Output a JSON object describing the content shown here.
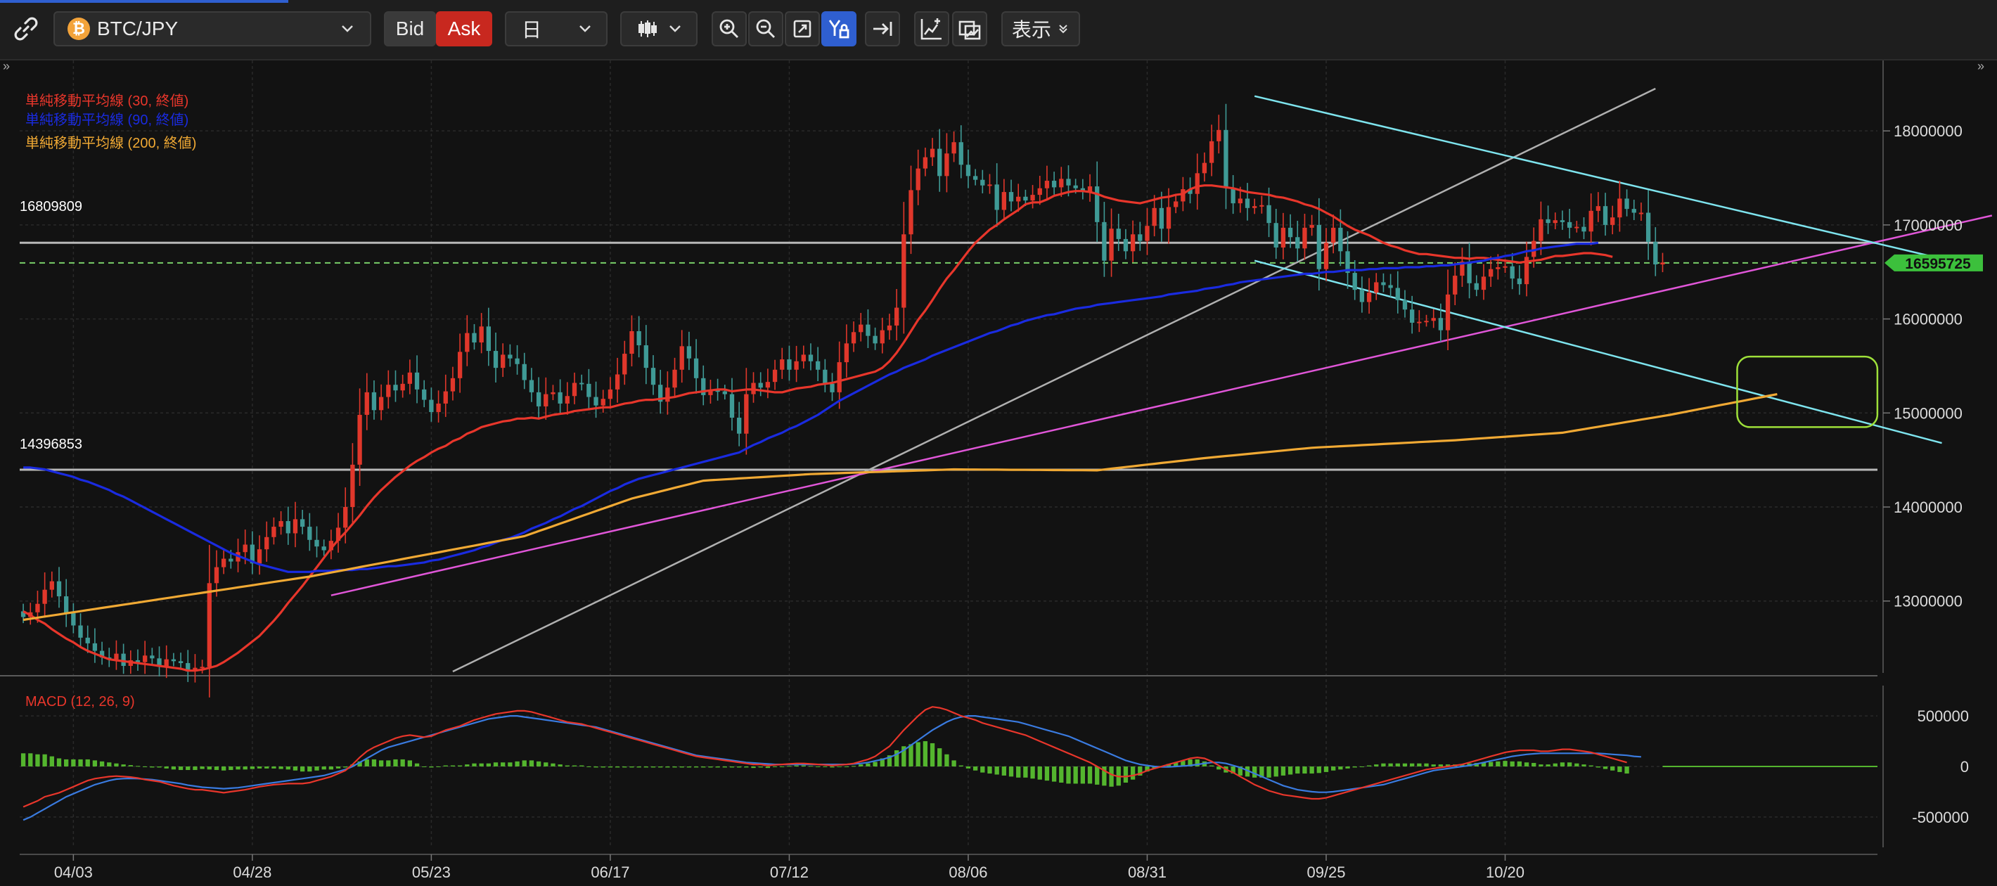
{
  "toolbar": {
    "symbol": "BTC/JPY",
    "coin_glyph": "₿",
    "bid_label": "Bid",
    "ask_label": "Ask",
    "period": "日",
    "view_label": "表示",
    "icons": [
      "link-icon",
      "candlestick-icon",
      "zoom-in-icon",
      "zoom-out-icon",
      "fit-icon",
      "y-lock-icon",
      "scroll-to-latest-icon",
      "add-indicator-icon",
      "screenshot-icon"
    ]
  },
  "legend": {
    "ma30": "単純移動平均線 (30, 終値)",
    "ma90": "単純移動平均線 (90, 終値)",
    "ma200": "単純移動平均線 (200, 終値)"
  },
  "macd_label": "MACD (12, 26, 9)",
  "levels": [
    {
      "label": "16809809",
      "value": 16809809
    },
    {
      "label": "14396853",
      "value": 14396853
    }
  ],
  "current_price": {
    "label": "16595725",
    "value": 16595725
  },
  "y_ticks": [
    "18000000",
    "17000000",
    "16000000",
    "15000000",
    "14000000",
    "13000000"
  ],
  "macd_ticks": [
    "500000",
    "0",
    "-500000"
  ],
  "x_ticks": [
    "04/03",
    "04/28",
    "05/23",
    "06/17",
    "07/12",
    "08/06",
    "08/31",
    "09/25",
    "10/20"
  ],
  "colors": {
    "background": "#121212",
    "up": "#e0372b",
    "down": "#3f9a96",
    "ma30": "#e8362b",
    "ma90": "#1a2be0",
    "ma200": "#f0a934",
    "price_tag": "#3cc03c",
    "channel": "#7ee4ee",
    "trend": "#e056d8",
    "macd_line": "#e8362b",
    "signal_line": "#3a7be0",
    "histogram": "#54b52e",
    "highlight_box": "#9ee03a"
  },
  "chart_data": {
    "type": "candlestick",
    "ylim": [
      12250000,
      18450000
    ],
    "closes": [
      12830000,
      12880000,
      12970000,
      13120000,
      13210000,
      13050000,
      12870000,
      12740000,
      12610000,
      12550000,
      12470000,
      12400000,
      12380000,
      12440000,
      12310000,
      12370000,
      12350000,
      12420000,
      12390000,
      12300000,
      12380000,
      12360000,
      12340000,
      12250000,
      12290000,
      12300000,
      13190000,
      13360000,
      13450000,
      13420000,
      13520000,
      13600000,
      13400000,
      13550000,
      13680000,
      13790000,
      13850000,
      13720000,
      13870000,
      13790000,
      13650000,
      13580000,
      13540000,
      13640000,
      13780000,
      14000000,
      14450000,
      14980000,
      15220000,
      15030000,
      15170000,
      15300000,
      15240000,
      15310000,
      15430000,
      15250000,
      15140000,
      15010000,
      15100000,
      15230000,
      15370000,
      15650000,
      15850000,
      15750000,
      15920000,
      15660000,
      15480000,
      15620000,
      15580000,
      15520000,
      15350000,
      15220000,
      15070000,
      15200000,
      15220000,
      15100000,
      15180000,
      15320000,
      15310000,
      15170000,
      15080000,
      15150000,
      15250000,
      15410000,
      15630000,
      15870000,
      15720000,
      15480000,
      15300000,
      15120000,
      15270000,
      15460000,
      15710000,
      15580000,
      15370000,
      15190000,
      15240000,
      15230000,
      15200000,
      14950000,
      14780000,
      15200000,
      15320000,
      15270000,
      15330000,
      15460000,
      15570000,
      15460000,
      15550000,
      15620000,
      15550000,
      15460000,
      15310000,
      15220000,
      15540000,
      15740000,
      15860000,
      15940000,
      15820000,
      15740000,
      15880000,
      15930000,
      16120000,
      16900000,
      17370000,
      17600000,
      17720000,
      17810000,
      17520000,
      17760000,
      17880000,
      17640000,
      17520000,
      17480000,
      17420000,
      17430000,
      17160000,
      17350000,
      17250000,
      17300000,
      17260000,
      17320000,
      17390000,
      17470000,
      17400000,
      17490000,
      17420000,
      17390000,
      17350000,
      17410000,
      17030000,
      16620000,
      16960000,
      16850000,
      16720000,
      16900000,
      16830000,
      16990000,
      17180000,
      16960000,
      17190000,
      17250000,
      17380000,
      17330000,
      17550000,
      17660000,
      17890000,
      18010000,
      17390000,
      17230000,
      17280000,
      17180000,
      17200000,
      17210000,
      17020000,
      16760000,
      16970000,
      16870000,
      16750000,
      16970000,
      17000000,
      16530000,
      16810000,
      16970000,
      16720000,
      16490000,
      16310000,
      16180000,
      16280000,
      16390000,
      16360000,
      16330000,
      16200000,
      16100000,
      15960000,
      15970000,
      15980000,
      16010000,
      15880000,
      16260000,
      16460000,
      16610000,
      16380000,
      16310000,
      16450000,
      16530000,
      16550000,
      16560000,
      16430000,
      16370000,
      16660000,
      16830000,
      17060000,
      17020000,
      17050000,
      17030000,
      16970000,
      16980000,
      16930000,
      17150000,
      17200000,
      17000000,
      17080000,
      17280000,
      17170000,
      17130000,
      17130000,
      16820000,
      16580000,
      16600000
    ],
    "ma30": [
      12890000,
      12850000,
      12800000,
      12760000,
      12700000,
      12650000,
      12600000,
      12560000,
      12510000,
      12470000,
      12440000,
      12410000,
      12380000,
      12370000,
      12360000,
      12350000,
      12340000,
      12330000,
      12320000,
      12310000,
      12300000,
      12290000,
      12280000,
      12260000,
      12260000,
      12270000,
      12290000,
      12310000,
      12350000,
      12400000,
      12450000,
      12510000,
      12570000,
      12630000,
      12710000,
      12790000,
      12880000,
      12980000,
      13070000,
      13160000,
      13260000,
      13360000,
      13460000,
      13560000,
      13650000,
      13730000,
      13820000,
      13910000,
      14010000,
      14100000,
      14180000,
      14250000,
      14320000,
      14380000,
      14440000,
      14490000,
      14530000,
      14580000,
      14620000,
      14650000,
      14700000,
      14730000,
      14780000,
      14810000,
      14850000,
      14870000,
      14890000,
      14910000,
      14920000,
      14940000,
      14940000,
      14950000,
      14940000,
      14960000,
      14980000,
      14990000,
      15000000,
      15020000,
      15030000,
      15040000,
      15050000,
      15060000,
      15060000,
      15080000,
      15100000,
      15110000,
      15130000,
      15140000,
      15140000,
      15150000,
      15160000,
      15170000,
      15190000,
      15210000,
      15220000,
      15230000,
      15240000,
      15250000,
      15250000,
      15230000,
      15240000,
      15250000,
      15250000,
      15240000,
      15230000,
      15220000,
      15220000,
      15240000,
      15260000,
      15270000,
      15280000,
      15300000,
      15310000,
      15320000,
      15340000,
      15360000,
      15380000,
      15400000,
      15420000,
      15440000,
      15480000,
      15550000,
      15640000,
      15750000,
      15870000,
      15990000,
      16090000,
      16200000,
      16320000,
      16430000,
      16520000,
      16620000,
      16720000,
      16810000,
      16880000,
      16950000,
      17000000,
      17060000,
      17110000,
      17160000,
      17220000,
      17240000,
      17240000,
      17270000,
      17310000,
      17330000,
      17350000,
      17360000,
      17360000,
      17350000,
      17330000,
      17300000,
      17280000,
      17260000,
      17250000,
      17240000,
      17230000,
      17250000,
      17270000,
      17290000,
      17300000,
      17320000,
      17330000,
      17380000,
      17410000,
      17420000,
      17420000,
      17410000,
      17400000,
      17390000,
      17370000,
      17350000,
      17340000,
      17330000,
      17320000,
      17300000,
      17290000,
      17270000,
      17250000,
      17220000,
      17200000,
      17170000,
      17130000,
      17090000,
      17040000,
      16990000,
      16950000,
      16920000,
      16890000,
      16850000,
      16810000,
      16780000,
      16760000,
      16730000,
      16710000,
      16690000,
      16690000,
      16680000,
      16670000,
      16660000,
      16650000,
      16650000,
      16640000,
      16650000,
      16650000,
      16640000,
      16630000,
      16620000,
      16610000,
      16600000,
      16610000,
      16620000,
      16630000,
      16650000,
      16670000,
      16670000,
      16680000,
      16690000,
      16700000,
      16700000,
      16690000,
      16680000,
      16660000
    ],
    "ma90": [
      14420000,
      14420000,
      14410000,
      14400000,
      14380000,
      14360000,
      14340000,
      14320000,
      14290000,
      14270000,
      14240000,
      14210000,
      14180000,
      14140000,
      14110000,
      14070000,
      14030000,
      13990000,
      13950000,
      13910000,
      13870000,
      13830000,
      13790000,
      13750000,
      13710000,
      13670000,
      13630000,
      13590000,
      13550000,
      13510000,
      13480000,
      13450000,
      13420000,
      13390000,
      13370000,
      13350000,
      13330000,
      13310000,
      13310000,
      13310000,
      13310000,
      13320000,
      13320000,
      13320000,
      13330000,
      13330000,
      13330000,
      13340000,
      13340000,
      13350000,
      13360000,
      13370000,
      13370000,
      13380000,
      13390000,
      13400000,
      13410000,
      13430000,
      13440000,
      13460000,
      13480000,
      13500000,
      13520000,
      13540000,
      13570000,
      13590000,
      13620000,
      13650000,
      13670000,
      13700000,
      13730000,
      13770000,
      13800000,
      13830000,
      13870000,
      13900000,
      13940000,
      13980000,
      14010000,
      14050000,
      14090000,
      14130000,
      14170000,
      14200000,
      14240000,
      14270000,
      14300000,
      14320000,
      14340000,
      14360000,
      14380000,
      14400000,
      14420000,
      14440000,
      14460000,
      14480000,
      14500000,
      14520000,
      14540000,
      14560000,
      14580000,
      14620000,
      14660000,
      14690000,
      14730000,
      14760000,
      14790000,
      14830000,
      14860000,
      14900000,
      14940000,
      14980000,
      15030000,
      15080000,
      15130000,
      15170000,
      15210000,
      15250000,
      15290000,
      15330000,
      15370000,
      15410000,
      15440000,
      15480000,
      15510000,
      15540000,
      15570000,
      15610000,
      15640000,
      15670000,
      15700000,
      15730000,
      15760000,
      15790000,
      15820000,
      15850000,
      15870000,
      15900000,
      15930000,
      15950000,
      15980000,
      16000000,
      16020000,
      16040000,
      16050000,
      16070000,
      16090000,
      16110000,
      16120000,
      16130000,
      16150000,
      16160000,
      16170000,
      16180000,
      16190000,
      16200000,
      16210000,
      16220000,
      16230000,
      16240000,
      16260000,
      16270000,
      16280000,
      16290000,
      16300000,
      16320000,
      16330000,
      16340000,
      16360000,
      16370000,
      16390000,
      16400000,
      16410000,
      16420000,
      16430000,
      16440000,
      16450000,
      16460000,
      16470000,
      16480000,
      16480000,
      16490000,
      16500000,
      16500000,
      16510000,
      16520000,
      16520000,
      16520000,
      16530000,
      16530000,
      16540000,
      16540000,
      16540000,
      16550000,
      16550000,
      16550000,
      16560000,
      16560000,
      16570000,
      16570000,
      16580000,
      16590000,
      16600000,
      16610000,
      16620000,
      16640000,
      16650000,
      16670000,
      16680000,
      16700000,
      16720000,
      16730000,
      16750000,
      16760000,
      16770000,
      16780000,
      16790000,
      16800000,
      16800000,
      16800000,
      16810000
    ],
    "ma200_anchors": [
      [
        0,
        12800000
      ],
      [
        40,
        13260000
      ],
      [
        70,
        13690000
      ],
      [
        85,
        14090000
      ],
      [
        95,
        14280000
      ],
      [
        110,
        14350000
      ],
      [
        130,
        14400000
      ],
      [
        150,
        14390000
      ],
      [
        165,
        14520000
      ],
      [
        180,
        14630000
      ],
      [
        200,
        14710000
      ],
      [
        215,
        14790000
      ],
      [
        230,
        14980000
      ],
      [
        245,
        15200000
      ]
    ],
    "channel_upper": [
      [
        172,
        18370000
      ],
      [
        268,
        16640000
      ]
    ],
    "channel_lower": [
      [
        172,
        16620000
      ],
      [
        268,
        14680000
      ]
    ],
    "trend_pink": [
      [
        43,
        13060000
      ],
      [
        275,
        17100000
      ]
    ],
    "trend_white": [
      [
        60,
        12250000
      ],
      [
        228,
        18450000
      ]
    ],
    "macd_ylim": [
      -800000,
      800000
    ],
    "macd": [
      -400000,
      -370000,
      -340000,
      -300000,
      -280000,
      -260000,
      -230000,
      -200000,
      -170000,
      -140000,
      -120000,
      -110000,
      -100000,
      -95000,
      -100000,
      -105000,
      -115000,
      -130000,
      -140000,
      -150000,
      -170000,
      -190000,
      -205000,
      -220000,
      -230000,
      -230000,
      -240000,
      -250000,
      -260000,
      -250000,
      -240000,
      -230000,
      -215000,
      -200000,
      -190000,
      -180000,
      -175000,
      -170000,
      -170000,
      -170000,
      -160000,
      -140000,
      -120000,
      -100000,
      -70000,
      -40000,
      20000,
      90000,
      150000,
      190000,
      220000,
      250000,
      280000,
      300000,
      310000,
      300000,
      290000,
      300000,
      330000,
      360000,
      380000,
      400000,
      430000,
      460000,
      480000,
      500000,
      520000,
      530000,
      540000,
      550000,
      550000,
      540000,
      520000,
      500000,
      480000,
      460000,
      440000,
      430000,
      420000,
      400000,
      380000,
      360000,
      340000,
      320000,
      300000,
      280000,
      260000,
      240000,
      220000,
      200000,
      180000,
      160000,
      140000,
      120000,
      100000,
      90000,
      80000,
      70000,
      60000,
      50000,
      40000,
      30000,
      20000,
      20000,
      10000,
      15000,
      20000,
      25000,
      30000,
      30000,
      25000,
      20000,
      15000,
      10000,
      15000,
      20000,
      30000,
      50000,
      70000,
      100000,
      150000,
      200000,
      280000,
      360000,
      430000,
      500000,
      560000,
      590000,
      580000,
      560000,
      530000,
      500000,
      480000,
      460000,
      430000,
      410000,
      390000,
      370000,
      350000,
      330000,
      310000,
      280000,
      250000,
      220000,
      190000,
      160000,
      130000,
      100000,
      70000,
      40000,
      0,
      -40000,
      -80000,
      -100000,
      -100000,
      -90000,
      -70000,
      -40000,
      -20000,
      0,
      20000,
      40000,
      60000,
      80000,
      90000,
      80000,
      50000,
      10000,
      -30000,
      -60000,
      -100000,
      -140000,
      -180000,
      -210000,
      -240000,
      -260000,
      -280000,
      -290000,
      -300000,
      -310000,
      -320000,
      -320000,
      -310000,
      -290000,
      -270000,
      -250000,
      -230000,
      -210000,
      -190000,
      -170000,
      -150000,
      -130000,
      -110000,
      -90000,
      -70000,
      -50000,
      -30000,
      -20000,
      -10000,
      0,
      10000,
      20000,
      40000,
      60000,
      80000,
      100000,
      120000,
      140000,
      150000,
      160000,
      160000,
      160000,
      150000,
      150000,
      160000,
      170000,
      170000,
      160000,
      150000,
      140000,
      120000,
      100000,
      80000,
      60000,
      40000
    ],
    "signal": [
      -530000,
      -500000,
      -460000,
      -420000,
      -380000,
      -340000,
      -300000,
      -270000,
      -240000,
      -210000,
      -180000,
      -160000,
      -140000,
      -125000,
      -120000,
      -118000,
      -120000,
      -125000,
      -130000,
      -140000,
      -150000,
      -160000,
      -170000,
      -185000,
      -195000,
      -205000,
      -210000,
      -215000,
      -220000,
      -215000,
      -210000,
      -200000,
      -190000,
      -180000,
      -170000,
      -160000,
      -150000,
      -140000,
      -130000,
      -120000,
      -110000,
      -100000,
      -90000,
      -70000,
      -50000,
      -30000,
      0,
      40000,
      80000,
      120000,
      160000,
      190000,
      210000,
      230000,
      250000,
      270000,
      290000,
      310000,
      330000,
      350000,
      370000,
      390000,
      410000,
      430000,
      450000,
      470000,
      480000,
      490000,
      500000,
      500000,
      490000,
      480000,
      470000,
      460000,
      450000,
      440000,
      430000,
      420000,
      410000,
      400000,
      390000,
      370000,
      350000,
      330000,
      310000,
      290000,
      270000,
      250000,
      230000,
      210000,
      190000,
      170000,
      150000,
      130000,
      110000,
      100000,
      90000,
      80000,
      70000,
      60000,
      50000,
      40000,
      35000,
      30000,
      25000,
      20000,
      20000,
      20000,
      20000,
      20000,
      20000,
      20000,
      20000,
      20000,
      20000,
      20000,
      25000,
      30000,
      40000,
      55000,
      70000,
      90000,
      120000,
      160000,
      210000,
      260000,
      310000,
      360000,
      400000,
      440000,
      470000,
      490000,
      500000,
      500000,
      490000,
      480000,
      470000,
      460000,
      450000,
      440000,
      420000,
      400000,
      380000,
      360000,
      340000,
      320000,
      300000,
      270000,
      240000,
      210000,
      180000,
      150000,
      120000,
      90000,
      60000,
      40000,
      20000,
      10000,
      0,
      -5000,
      -5000,
      0,
      5000,
      10000,
      20000,
      30000,
      40000,
      40000,
      30000,
      10000,
      -10000,
      -40000,
      -70000,
      -100000,
      -130000,
      -160000,
      -190000,
      -210000,
      -230000,
      -240000,
      -250000,
      -255000,
      -255000,
      -250000,
      -240000,
      -230000,
      -220000,
      -210000,
      -200000,
      -190000,
      -180000,
      -160000,
      -140000,
      -120000,
      -100000,
      -80000,
      -60000,
      -40000,
      -30000,
      -20000,
      -10000,
      0,
      10000,
      25000,
      40000,
      55000,
      70000,
      85000,
      100000,
      110000,
      120000,
      125000,
      130000,
      130000,
      130000,
      130000,
      130000,
      130000,
      130000,
      130000,
      130000,
      125000,
      120000,
      115000,
      110000,
      100000,
      95000
    ],
    "future_bars": 30
  }
}
